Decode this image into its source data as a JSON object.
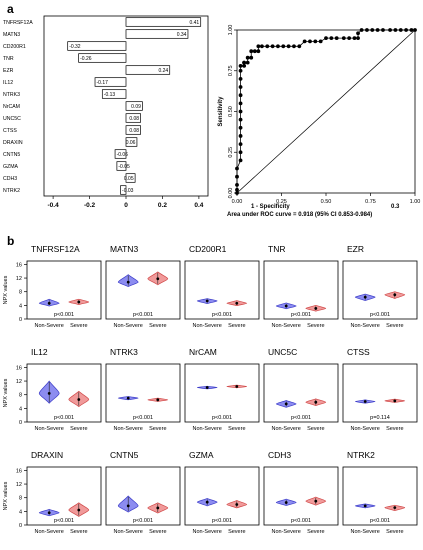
{
  "panel_a": {
    "letter": "a",
    "bar_chart": {
      "type": "bar",
      "orientation": "horizontal",
      "categories": [
        "TNFRSF12A",
        "MATN3",
        "CD200R1",
        "TNR",
        "EZR",
        "IL12",
        "NTRK3",
        "NrCAM",
        "UNC5C",
        "CTSS",
        "DRAXIN",
        "CNTN5",
        "GZMA",
        "CDH3",
        "NTRK2"
      ],
      "values": [
        0.41,
        0.34,
        -0.32,
        -0.26,
        0.24,
        -0.17,
        -0.13,
        0.09,
        0.08,
        0.08,
        0.06,
        -0.06,
        -0.05,
        0.05,
        -0.03
      ],
      "value_labels": [
        "0.41",
        "0.34",
        "-0.32",
        "-0.26",
        "0.24",
        "-0.17",
        "-0.13",
        "0.09",
        "0.08",
        "0.08",
        "0.06",
        "-0.06",
        "-0.05",
        "0.05",
        "-0.03"
      ],
      "xlim": [
        -0.45,
        0.45
      ],
      "xticks": [
        -0.4,
        -0.2,
        0,
        0.2,
        0.4
      ],
      "xtick_labels": [
        "-0.4",
        "-0.2",
        "0",
        "0.2",
        "0.4"
      ]
    },
    "roc_chart": {
      "type": "line",
      "xlabel": "1 - Specificity",
      "ylabel": "Sensitivity",
      "caption": "Area under ROC curve = 0.918 (95% CI 0.853-0.984)",
      "stray_label": "0.3",
      "xlim": [
        0,
        1
      ],
      "ylim": [
        0,
        1
      ],
      "xticks": [
        0,
        0.25,
        0.5,
        0.75,
        1
      ],
      "xtick_labels": [
        "0.00",
        "0.25",
        "0.50",
        "0.75",
        "1.00"
      ],
      "yticks": [
        0,
        0.25,
        0.5,
        0.75,
        1
      ],
      "ytick_labels": [
        "0.00",
        "0.25",
        "0.50",
        "0.75",
        "1.00"
      ],
      "reference_line": [
        [
          0,
          0
        ],
        [
          1,
          1
        ]
      ],
      "x": [
        0,
        0,
        0,
        0,
        0,
        0.02,
        0.02,
        0.02,
        0.02,
        0.02,
        0.02,
        0.02,
        0.02,
        0.02,
        0.02,
        0.02,
        0.02,
        0.02,
        0.04,
        0.04,
        0.04,
        0.06,
        0.06,
        0.08,
        0.08,
        0.1,
        0.12,
        0.12,
        0.14,
        0.17,
        0.2,
        0.23,
        0.26,
        0.29,
        0.32,
        0.35,
        0.38,
        0.41,
        0.44,
        0.47,
        0.5,
        0.53,
        0.56,
        0.6,
        0.63,
        0.66,
        0.68,
        0.68,
        0.7,
        0.73,
        0.76,
        0.79,
        0.82,
        0.86,
        0.89,
        0.92,
        0.95,
        0.98,
        1
      ],
      "y": [
        0,
        0.02,
        0.05,
        0.1,
        0.15,
        0.2,
        0.25,
        0.3,
        0.35,
        0.4,
        0.45,
        0.5,
        0.55,
        0.6,
        0.65,
        0.7,
        0.75,
        0.78,
        0.78,
        0.8,
        0.8,
        0.8,
        0.83,
        0.83,
        0.87,
        0.87,
        0.87,
        0.9,
        0.9,
        0.9,
        0.9,
        0.9,
        0.9,
        0.9,
        0.9,
        0.9,
        0.93,
        0.93,
        0.93,
        0.93,
        0.95,
        0.95,
        0.95,
        0.95,
        0.95,
        0.95,
        0.95,
        0.98,
        1,
        1,
        1,
        1,
        1,
        1,
        1,
        1,
        1,
        1,
        1
      ]
    }
  },
  "panel_b": {
    "letter": "b",
    "ylabel": "NPX values",
    "yticks": [
      0,
      4,
      8,
      12,
      16
    ],
    "ytick_labels": [
      "0",
      "4",
      "8",
      "12",
      "16"
    ],
    "ylim": [
      0,
      17
    ],
    "group_labels": [
      "Non-Severe",
      "Severe"
    ],
    "colors": {
      "non_severe": "#8c8cf0",
      "non_severe_edge": "#3c3cc8",
      "severe": "#f09a9a",
      "severe_edge": "#d04848"
    },
    "chart_data": {
      "type": "violin",
      "groups": [
        "Non-Severe",
        "Severe"
      ],
      "proteins": [
        {
          "name": "TNFRSF12A",
          "pvalue": "p<0.001",
          "median": [
            4.6,
            5.0
          ],
          "range": [
            [
              3.8,
              5.8
            ],
            [
              4.2,
              5.8
            ]
          ]
        },
        {
          "name": "MATN3",
          "pvalue": "p<0.001",
          "median": [
            10.8,
            11.8
          ],
          "range": [
            [
              9.5,
              13.0
            ],
            [
              10.0,
              13.8
            ]
          ]
        },
        {
          "name": "CD200R1",
          "pvalue": "p<0.001",
          "median": [
            5.3,
            4.6
          ],
          "range": [
            [
              4.5,
              6.0
            ],
            [
              3.9,
              5.4
            ]
          ]
        },
        {
          "name": "TNR",
          "pvalue": "p<0.001",
          "median": [
            3.8,
            3.1
          ],
          "range": [
            [
              3.0,
              4.7
            ],
            [
              2.3,
              4.0
            ]
          ]
        },
        {
          "name": "EZR",
          "pvalue": "p<0.001",
          "median": [
            6.4,
            7.1
          ],
          "range": [
            [
              5.4,
              7.3
            ],
            [
              6.0,
              8.0
            ]
          ]
        },
        {
          "name": "IL12",
          "pvalue": "p<0.001",
          "median": [
            8.4,
            6.6
          ],
          "range": [
            [
              5.5,
              12.0
            ],
            [
              4.5,
              9.0
            ]
          ]
        },
        {
          "name": "NTRK3",
          "pvalue": "p<0.001",
          "median": [
            7.0,
            6.5
          ],
          "range": [
            [
              6.5,
              7.5
            ],
            [
              6.0,
              7.0
            ]
          ]
        },
        {
          "name": "NrCAM",
          "pvalue": "p<0.001",
          "median": [
            10.1,
            10.4
          ],
          "range": [
            [
              9.7,
              10.5
            ],
            [
              10.0,
              10.8
            ]
          ]
        },
        {
          "name": "UNC5C",
          "pvalue": "p<0.001",
          "median": [
            5.3,
            5.8
          ],
          "range": [
            [
              4.3,
              6.3
            ],
            [
              4.8,
              6.8
            ]
          ]
        },
        {
          "name": "CTSS",
          "pvalue": "p=0.114",
          "median": [
            6.0,
            6.2
          ],
          "range": [
            [
              5.5,
              6.5
            ],
            [
              5.7,
              6.7
            ]
          ]
        },
        {
          "name": "DRAXIN",
          "pvalue": "p<0.001",
          "median": [
            3.6,
            4.4
          ],
          "range": [
            [
              2.7,
              4.6
            ],
            [
              2.5,
              6.5
            ]
          ]
        },
        {
          "name": "CNTN5",
          "pvalue": "p<0.001",
          "median": [
            5.6,
            5.0
          ],
          "range": [
            [
              3.8,
              8.5
            ],
            [
              3.5,
              6.5
            ]
          ]
        },
        {
          "name": "GZMA",
          "pvalue": "p<0.001",
          "median": [
            6.7,
            6.0
          ],
          "range": [
            [
              5.6,
              7.8
            ],
            [
              5.0,
              7.2
            ]
          ]
        },
        {
          "name": "CDH3",
          "pvalue": "p<0.001",
          "median": [
            6.6,
            7.0
          ],
          "range": [
            [
              5.7,
              7.6
            ],
            [
              5.8,
              8.2
            ]
          ]
        },
        {
          "name": "NTRK2",
          "pvalue": "p<0.001",
          "median": [
            5.6,
            5.1
          ],
          "range": [
            [
              5.0,
              6.2
            ],
            [
              4.2,
              5.8
            ]
          ]
        }
      ]
    }
  }
}
